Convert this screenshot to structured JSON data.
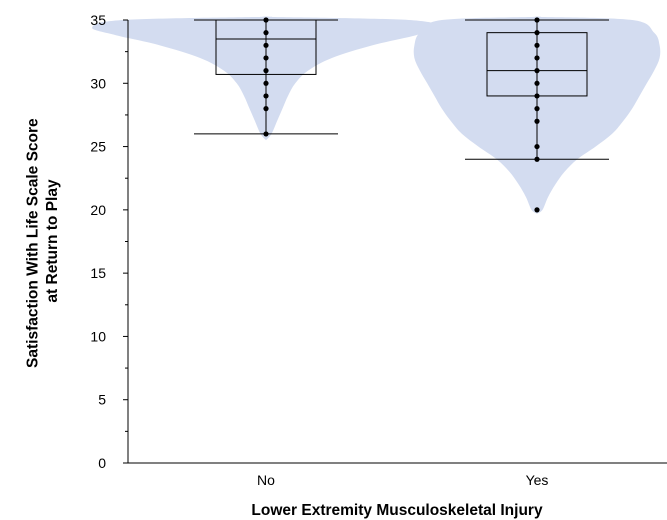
{
  "chart_data": {
    "type": "violin",
    "xlabel": "Lower Extremity Musculoskeletal Injury",
    "ylabel_lines": [
      "Satisfaction With Life Scale Score",
      "at Return to Play"
    ],
    "ylim": [
      0,
      35
    ],
    "yticks": [
      0,
      5,
      10,
      15,
      20,
      25,
      30,
      35
    ],
    "grid": false,
    "legend": "none",
    "colors": {
      "violin_fill": "#d3dcf0",
      "box_stroke": "#000000",
      "point": "#000000"
    },
    "categories": [
      "No",
      "Yes"
    ],
    "groups": [
      {
        "name": "No",
        "whisker_low": 26,
        "q1": 30.7,
        "median": 33.5,
        "q3": 35,
        "whisker_high": 35,
        "points": [
          26,
          28,
          29,
          30,
          31,
          32,
          33,
          34,
          35
        ],
        "density": [
          [
            25.5,
            0.0
          ],
          [
            26,
            0.03
          ],
          [
            27,
            0.06
          ],
          [
            28,
            0.09
          ],
          [
            29,
            0.12
          ],
          [
            30,
            0.16
          ],
          [
            31,
            0.23
          ],
          [
            32,
            0.36
          ],
          [
            33,
            0.58
          ],
          [
            33.8,
            0.82
          ],
          [
            34.4,
            0.95
          ],
          [
            35,
            0.78
          ],
          [
            35.25,
            0.0
          ]
        ]
      },
      {
        "name": "Yes",
        "whisker_low": 24,
        "q1": 29,
        "median": 31,
        "q3": 34,
        "whisker_high": 35,
        "points": [
          20,
          24,
          25,
          27,
          28,
          29,
          30,
          31,
          32,
          33,
          34,
          35
        ],
        "density": [
          [
            19.7,
            0.0
          ],
          [
            20,
            0.03
          ],
          [
            21,
            0.06
          ],
          [
            22,
            0.1
          ],
          [
            23,
            0.15
          ],
          [
            24,
            0.22
          ],
          [
            25,
            0.32
          ],
          [
            26,
            0.41
          ],
          [
            27,
            0.47
          ],
          [
            28,
            0.52
          ],
          [
            29,
            0.56
          ],
          [
            30,
            0.6
          ],
          [
            31,
            0.64
          ],
          [
            32,
            0.67
          ],
          [
            33,
            0.67
          ],
          [
            34,
            0.64
          ],
          [
            35,
            0.52
          ],
          [
            35.25,
            0.0
          ]
        ]
      }
    ]
  }
}
